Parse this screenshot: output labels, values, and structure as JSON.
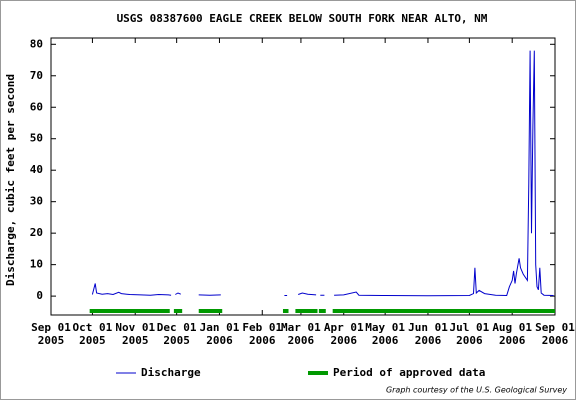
{
  "chart_data": {
    "type": "line",
    "title": "USGS 08387600 EAGLE CREEK BELOW SOUTH FORK NEAR ALTO, NM",
    "y_label": "Discharge, cubic feet per second",
    "footer": "Graph courtesy of the U.S. Geological Survey",
    "xlim": [
      "2005-09-01",
      "2006-09-01"
    ],
    "xticks": [
      {
        "value": "2005-09-01",
        "label": "Sep 01",
        "year": "2005"
      },
      {
        "value": "2005-10-01",
        "label": "Oct 01",
        "year": "2005"
      },
      {
        "value": "2005-11-01",
        "label": "Nov 01",
        "year": "2005"
      },
      {
        "value": "2005-12-01",
        "label": "Dec 01",
        "year": "2005"
      },
      {
        "value": "2006-01-01",
        "label": "Jan 01",
        "year": "2006"
      },
      {
        "value": "2006-02-01",
        "label": "Feb 01",
        "year": "2006"
      },
      {
        "value": "2006-03-01",
        "label": "Mar 01",
        "year": "2006"
      },
      {
        "value": "2006-04-01",
        "label": "Apr 01",
        "year": "2006"
      },
      {
        "value": "2006-05-01",
        "label": "May 01",
        "year": "2006"
      },
      {
        "value": "2006-06-01",
        "label": "Jun 01",
        "year": "2006"
      },
      {
        "value": "2006-07-01",
        "label": "Jul 01",
        "year": "2006"
      },
      {
        "value": "2006-08-01",
        "label": "Aug 01",
        "year": "2006"
      },
      {
        "value": "2006-09-01",
        "label": "Sep 01",
        "year": "2006"
      }
    ],
    "ylim": [
      -6,
      82
    ],
    "yticks": [
      0,
      10,
      20,
      30,
      40,
      50,
      60,
      70,
      80
    ],
    "grid": false,
    "x": [
      "2005-10-01",
      "2005-10-03",
      "2005-10-04",
      "2005-10-08",
      "2005-10-12",
      "2005-10-16",
      "2005-10-20",
      "2005-10-22",
      "2005-10-28",
      "2005-11-05",
      "2005-11-12",
      "2005-11-18",
      "2005-11-25",
      "2005-11-27",
      "2005-11-28",
      "2005-11-30",
      "2005-12-02",
      "2005-12-04",
      "2005-12-10",
      "2005-12-17",
      "2005-12-25",
      "2006-01-02",
      "2006-01-10",
      "2006-02-17",
      "2006-02-19",
      "2006-02-22",
      "2006-02-27",
      "2006-03-02",
      "2006-03-06",
      "2006-03-12",
      "2006-03-13",
      "2006-03-15",
      "2006-03-18",
      "2006-03-21",
      "2006-03-25",
      "2006-04-01",
      "2006-04-10",
      "2006-04-12",
      "2006-05-01",
      "2006-06-01",
      "2006-07-01",
      "2006-07-04",
      "2006-07-05",
      "2006-07-06",
      "2006-07-08",
      "2006-07-12",
      "2006-07-20",
      "2006-07-28",
      "2006-07-30",
      "2006-08-01",
      "2006-08-02",
      "2006-08-03",
      "2006-08-04",
      "2006-08-06",
      "2006-08-07",
      "2006-08-09",
      "2006-08-12",
      "2006-08-13",
      "2006-08-14",
      "2006-08-15",
      "2006-08-16",
      "2006-08-17",
      "2006-08-18",
      "2006-08-19",
      "2006-08-20",
      "2006-08-21",
      "2006-08-22",
      "2006-08-24",
      "2006-08-31"
    ],
    "series": [
      {
        "name": "Discharge",
        "color": "#0000cc",
        "values": [
          0.5,
          4,
          1,
          0.6,
          0.8,
          0.5,
          1.2,
          0.8,
          0.5,
          0.4,
          0.3,
          0.5,
          0.4,
          0.3,
          null,
          0.5,
          1,
          0.6,
          null,
          0.4,
          0.3,
          0.4,
          null,
          0.2,
          0.2,
          null,
          0.5,
          1,
          0.6,
          0.4,
          null,
          0.3,
          0.3,
          null,
          0.3,
          0.4,
          1.3,
          0.3,
          0.2,
          0.1,
          0.2,
          0.8,
          9,
          1,
          1.8,
          0.8,
          0.3,
          0.2,
          3,
          5,
          8,
          4,
          7,
          12,
          9,
          7,
          5,
          36,
          78,
          20,
          54,
          78,
          10,
          3,
          2,
          9,
          1,
          0.3,
          0.2
        ]
      }
    ],
    "approved": {
      "name": "Period of approved data",
      "color": "#009900",
      "periods": [
        [
          "2005-09-29",
          "2005-11-26"
        ],
        [
          "2005-11-29",
          "2005-12-05"
        ],
        [
          "2005-12-17",
          "2006-01-03"
        ],
        [
          "2006-02-16",
          "2006-02-20"
        ],
        [
          "2006-02-25",
          "2006-03-13"
        ],
        [
          "2006-03-14",
          "2006-03-19"
        ],
        [
          "2006-03-24",
          "2006-09-01"
        ]
      ]
    }
  }
}
